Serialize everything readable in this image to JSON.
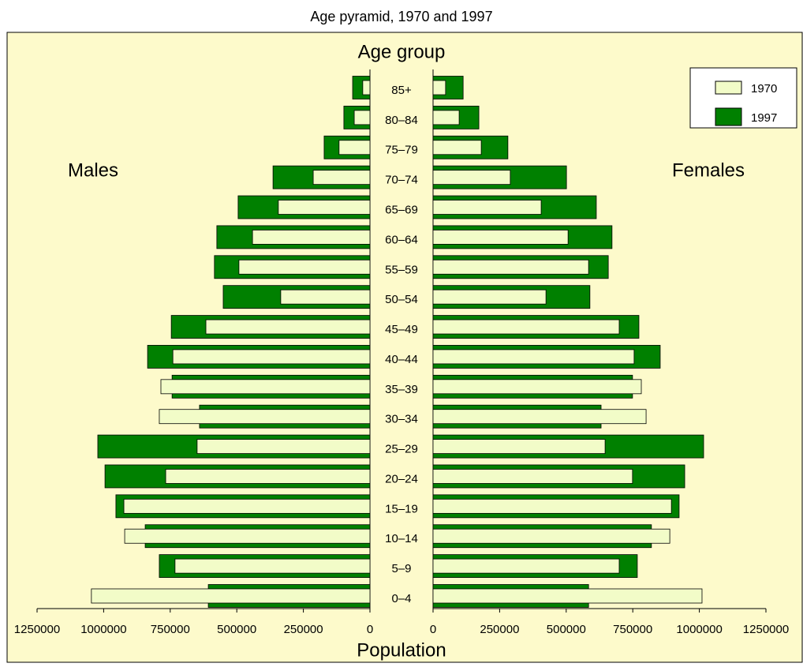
{
  "chart_data": {
    "type": "pyramid",
    "title": "Age pyramid, 1970 and 1997",
    "category_axis_label": "Age group",
    "x_label": "Population",
    "left_label": "Males",
    "right_label": "Females",
    "categories": [
      "0–4",
      "5–9",
      "10–14",
      "15–19",
      "20–24",
      "25–29",
      "30–34",
      "35–39",
      "40–44",
      "45–49",
      "50–54",
      "55–59",
      "60–64",
      "65–69",
      "70–74",
      "75–79",
      "80–84",
      "85+"
    ],
    "series": [
      {
        "name": "1970",
        "color": "#f2fcc8",
        "males": [
          1046000,
          732000,
          921000,
          924000,
          767000,
          649000,
          791000,
          785000,
          740000,
          616000,
          335000,
          492000,
          441000,
          344000,
          213000,
          116000,
          59000,
          27000
        ],
        "females": [
          1010000,
          699000,
          889000,
          895000,
          749000,
          646000,
          800000,
          782000,
          755000,
          699000,
          424000,
          584000,
          507000,
          406000,
          290000,
          181000,
          98000,
          47000
        ]
      },
      {
        "name": "1997",
        "color": "#008000",
        "males": [
          607000,
          791000,
          844000,
          954000,
          995000,
          1022000,
          640000,
          743000,
          835000,
          746000,
          551000,
          584000,
          575000,
          495000,
          364000,
          172000,
          98000,
          65000
        ],
        "females": [
          584000,
          767000,
          820000,
          924000,
          945000,
          1016000,
          631000,
          749000,
          853000,
          773000,
          589000,
          658000,
          672000,
          613000,
          501000,
          281000,
          172000,
          113000
        ]
      }
    ],
    "xlim": [
      0,
      1250000
    ],
    "xticks": [
      0,
      250000,
      500000,
      750000,
      1000000,
      1250000
    ],
    "legend": "upper right"
  }
}
